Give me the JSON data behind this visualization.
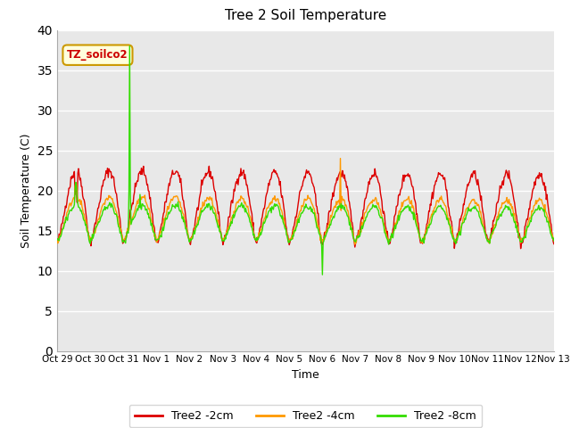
{
  "title": "Tree 2 Soil Temperature",
  "xlabel": "Time",
  "ylabel": "Soil Temperature (C)",
  "ylim": [
    0,
    40
  ],
  "yticks": [
    0,
    5,
    10,
    15,
    20,
    25,
    30,
    35,
    40
  ],
  "annotation_text": "TZ_soilco2",
  "annotation_color": "#cc0000",
  "annotation_bg": "#ffffdd",
  "annotation_border": "#cc9900",
  "legend_labels": [
    "Tree2 -2cm",
    "Tree2 -4cm",
    "Tree2 -8cm"
  ],
  "line_colors": [
    "#dd0000",
    "#ff9900",
    "#33dd00"
  ],
  "background_color": "#e8e8e8",
  "x_tick_labels": [
    "Oct 29",
    "Oct 30",
    "Oct 31",
    "Nov 1",
    "Nov 2",
    "Nov 3",
    "Nov 4",
    "Nov 5",
    "Nov 6",
    "Nov 7",
    "Nov 8",
    "Nov 9",
    "Nov 10",
    "Nov 11",
    "Nov 12",
    "Nov 13"
  ],
  "num_days": 15,
  "points_per_day": 48,
  "figsize": [
    6.4,
    4.8
  ],
  "dpi": 100
}
